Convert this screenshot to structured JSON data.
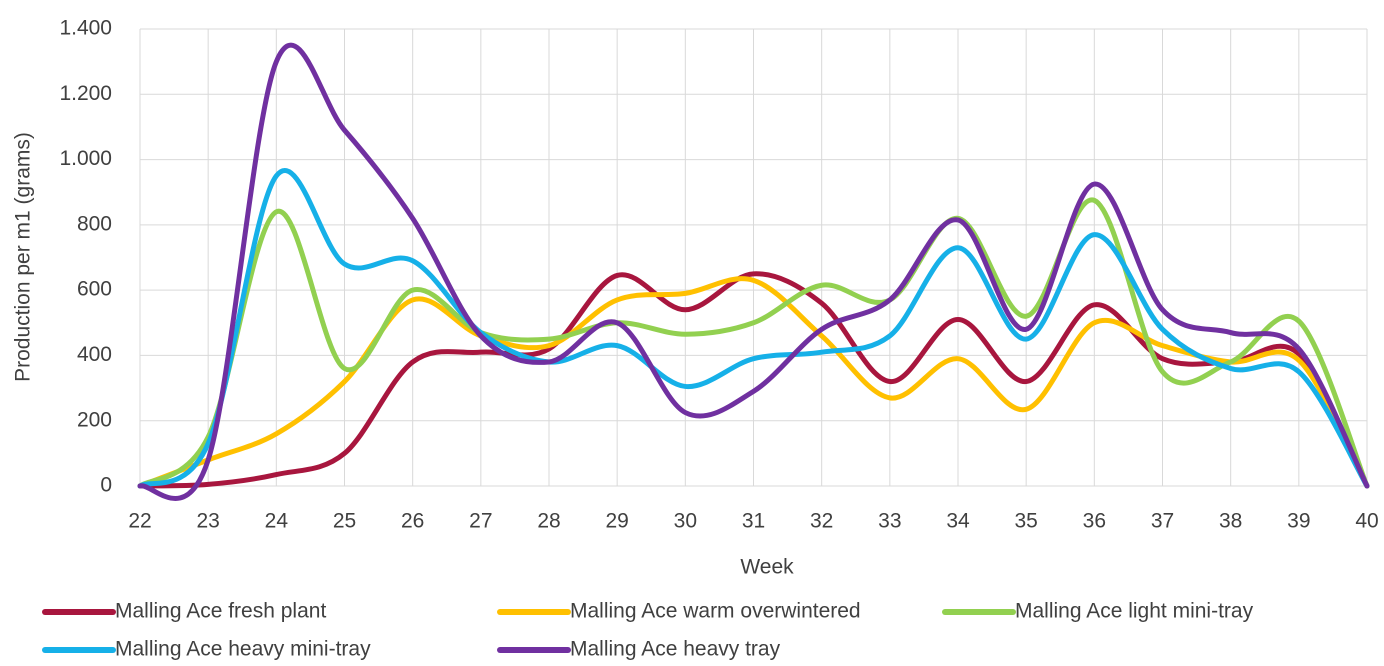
{
  "chart_data": {
    "type": "line",
    "x_label": "Week",
    "y_label": "Production per m1 (grams)",
    "x": [
      22,
      23,
      24,
      25,
      26,
      27,
      28,
      29,
      30,
      31,
      32,
      33,
      34,
      35,
      36,
      37,
      38,
      39,
      40
    ],
    "xlim": [
      22,
      40
    ],
    "xticks": [
      22,
      23,
      24,
      25,
      26,
      27,
      28,
      29,
      30,
      31,
      32,
      33,
      34,
      35,
      36,
      37,
      38,
      39,
      40
    ],
    "ylim": [
      0,
      1400
    ],
    "yticks": [
      0,
      200,
      400,
      600,
      800,
      {
        "value": 1000,
        "label": "1.000"
      },
      {
        "value": 1200,
        "label": "1.200"
      },
      {
        "value": 1400,
        "label": "1.400"
      }
    ],
    "grid": true,
    "smooth": true,
    "legend": "bottom",
    "series": [
      {
        "name": "Malling Ace fresh plant",
        "color": "#a8163e",
        "values": [
          0,
          5,
          35,
          100,
          380,
          410,
          420,
          645,
          540,
          650,
          560,
          320,
          510,
          320,
          555,
          390,
          380,
          405,
          0
        ]
      },
      {
        "name": "Malling Ace warm overwintered",
        "color": "#ffc000",
        "values": [
          0,
          80,
          160,
          320,
          570,
          460,
          430,
          570,
          590,
          630,
          460,
          270,
          390,
          235,
          500,
          430,
          380,
          385,
          0
        ]
      },
      {
        "name": "Malling Ace light mini-tray",
        "color": "#92d050",
        "values": [
          0,
          150,
          840,
          360,
          600,
          470,
          450,
          500,
          465,
          500,
          615,
          570,
          820,
          520,
          875,
          350,
          380,
          505,
          0
        ]
      },
      {
        "name": "Malling Ace heavy mini-tray",
        "color": "#16b0e8",
        "values": [
          0,
          130,
          950,
          680,
          690,
          470,
          380,
          430,
          305,
          390,
          410,
          460,
          730,
          450,
          770,
          480,
          360,
          350,
          0
        ]
      },
      {
        "name": "Malling Ace heavy tray",
        "color": "#7030a0",
        "values": [
          0,
          80,
          1300,
          1090,
          820,
          460,
          380,
          500,
          225,
          290,
          480,
          570,
          815,
          480,
          925,
          540,
          470,
          420,
          0
        ]
      }
    ]
  }
}
